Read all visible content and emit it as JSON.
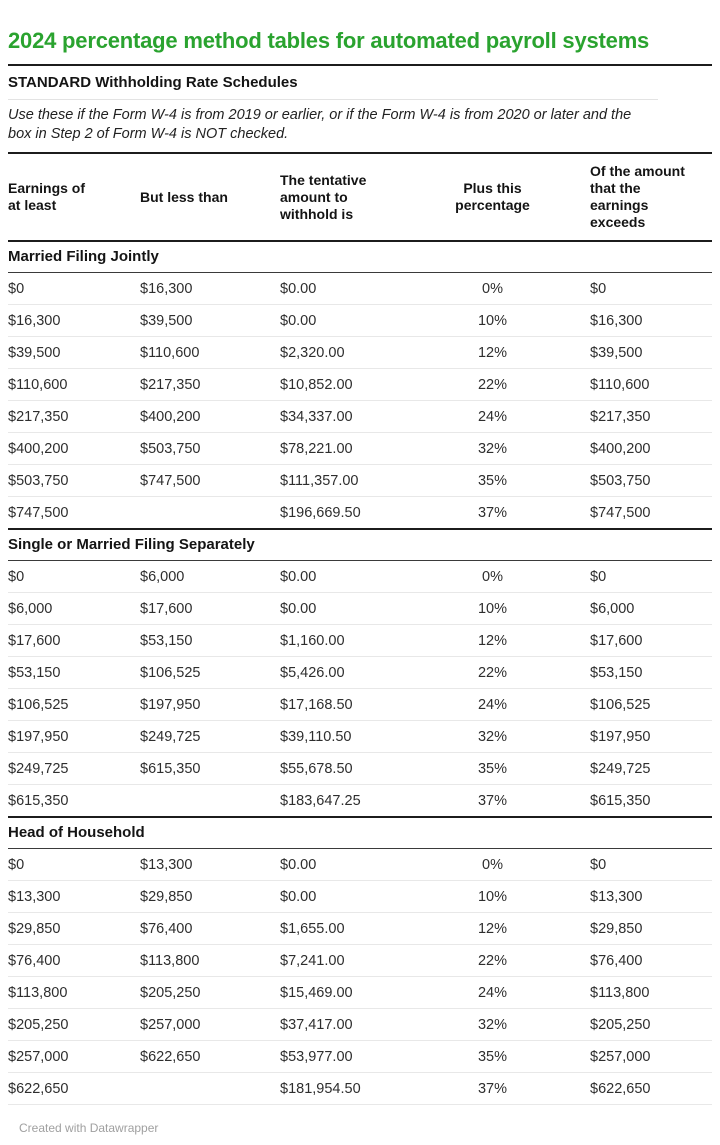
{
  "header": {
    "title": "2024 percentage method tables for automated payroll systems",
    "subtitle": "STANDARD Withholding Rate Schedules",
    "description": "Use these if the Form W-4 is from 2019 or earlier, or if the Form W-4 is from 2020 or later and the box in Step 2 of Form W-4 is NOT checked."
  },
  "footer": {
    "attribution": "Created with Datawrapper"
  },
  "colors": {
    "title_green": "#2aa32f",
    "rule_dark": "#1c1c1c",
    "rule_light": "#e8e8e8",
    "body_text": "#2e2e2e",
    "muted_text": "#a0a0a0"
  },
  "chart_data": {
    "type": "table",
    "columns": [
      "Earnings of\nat least",
      "But less than",
      "The tentative\namount to\nwithhold is",
      "Plus this\npercentage",
      "Of the amount\nthat the\nearnings\nexceeds"
    ],
    "alignments": [
      "left",
      "left",
      "left",
      "center",
      "left"
    ],
    "sections": [
      {
        "label": "Married Filing Jointly",
        "rows": [
          [
            "$0",
            "$16,300",
            "$0.00",
            "0%",
            "$0"
          ],
          [
            "$16,300",
            "$39,500",
            "$0.00",
            "10%",
            "$16,300"
          ],
          [
            "$39,500",
            "$110,600",
            "$2,320.00",
            "12%",
            "$39,500"
          ],
          [
            "$110,600",
            "$217,350",
            "$10,852.00",
            "22%",
            "$110,600"
          ],
          [
            "$217,350",
            "$400,200",
            "$34,337.00",
            "24%",
            "$217,350"
          ],
          [
            "$400,200",
            "$503,750",
            "$78,221.00",
            "32%",
            "$400,200"
          ],
          [
            "$503,750",
            "$747,500",
            "$111,357.00",
            "35%",
            "$503,750"
          ],
          [
            "$747,500",
            "",
            "$196,669.50",
            "37%",
            "$747,500"
          ]
        ]
      },
      {
        "label": "Single or Married Filing Separately",
        "rows": [
          [
            "$0",
            "$6,000",
            "$0.00",
            "0%",
            "$0"
          ],
          [
            "$6,000",
            "$17,600",
            "$0.00",
            "10%",
            "$6,000"
          ],
          [
            "$17,600",
            "$53,150",
            "$1,160.00",
            "12%",
            "$17,600"
          ],
          [
            "$53,150",
            "$106,525",
            "$5,426.00",
            "22%",
            "$53,150"
          ],
          [
            "$106,525",
            "$197,950",
            "$17,168.50",
            "24%",
            "$106,525"
          ],
          [
            "$197,950",
            "$249,725",
            "$39,110.50",
            "32%",
            "$197,950"
          ],
          [
            "$249,725",
            "$615,350",
            "$55,678.50",
            "35%",
            "$249,725"
          ],
          [
            "$615,350",
            "",
            "$183,647.25",
            "37%",
            "$615,350"
          ]
        ]
      },
      {
        "label": "Head of Household",
        "rows": [
          [
            "$0",
            "$13,300",
            "$0.00",
            "0%",
            "$0"
          ],
          [
            "$13,300",
            "$29,850",
            "$0.00",
            "10%",
            "$13,300"
          ],
          [
            "$29,850",
            "$76,400",
            "$1,655.00",
            "12%",
            "$29,850"
          ],
          [
            "$76,400",
            "$113,800",
            "$7,241.00",
            "22%",
            "$76,400"
          ],
          [
            "$113,800",
            "$205,250",
            "$15,469.00",
            "24%",
            "$113,800"
          ],
          [
            "$205,250",
            "$257,000",
            "$37,417.00",
            "32%",
            "$205,250"
          ],
          [
            "$257,000",
            "$622,650",
            "$53,977.00",
            "35%",
            "$257,000"
          ],
          [
            "$622,650",
            "",
            "$181,954.50",
            "37%",
            "$622,650"
          ]
        ]
      }
    ]
  }
}
